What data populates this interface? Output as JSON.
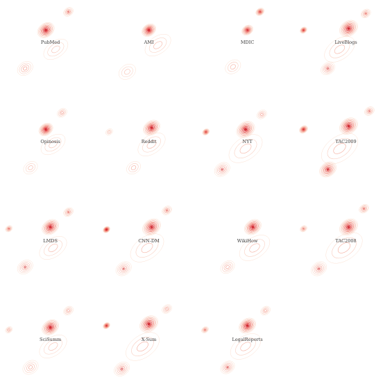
{
  "chart_data": {
    "type": "contour",
    "palette": {
      "outer": "#f7c3a8",
      "mid": "#ee7360",
      "inner": "#d7202a",
      "peak": "#c81d25",
      "label": "#3a3a3a"
    },
    "levels": 9,
    "panels": [
      {
        "name": "PubMed",
        "clusters": [
          {
            "x": 0.47,
            "y": 0.32,
            "s": 0.12,
            "w": 1.0
          },
          {
            "x": 0.72,
            "y": 0.1,
            "s": 0.07,
            "w": 0.55
          },
          {
            "x": 0.24,
            "y": 0.78,
            "s": 0.11,
            "w": 0.45
          },
          {
            "x": 0.58,
            "y": 0.55,
            "s": 0.16,
            "w": 0.25
          }
        ]
      },
      {
        "name": "AMI",
        "clusters": [
          {
            "x": 0.52,
            "y": 0.32,
            "s": 0.1,
            "w": 1.0
          },
          {
            "x": 0.28,
            "y": 0.82,
            "s": 0.12,
            "w": 0.25
          },
          {
            "x": 0.62,
            "y": 0.5,
            "s": 0.17,
            "w": 0.3
          }
        ]
      },
      {
        "name": "MDIC",
        "clusters": [
          {
            "x": 0.52,
            "y": 0.32,
            "s": 0.08,
            "w": 0.9
          },
          {
            "x": 0.66,
            "y": 0.1,
            "s": 0.06,
            "w": 0.75
          },
          {
            "x": 0.36,
            "y": 0.76,
            "s": 0.11,
            "w": 0.35
          }
        ]
      },
      {
        "name": "LiveBlogs",
        "clusters": [
          {
            "x": 0.55,
            "y": 0.3,
            "s": 0.13,
            "w": 1.0
          },
          {
            "x": 0.05,
            "y": 0.32,
            "s": 0.05,
            "w": 0.8
          },
          {
            "x": 0.74,
            "y": 0.12,
            "s": 0.07,
            "w": 0.5
          },
          {
            "x": 0.32,
            "y": 0.78,
            "s": 0.1,
            "w": 0.6
          },
          {
            "x": 0.45,
            "y": 0.55,
            "s": 0.2,
            "w": 0.3
          }
        ]
      },
      {
        "name": "Opinosis",
        "clusters": [
          {
            "x": 0.47,
            "y": 0.32,
            "s": 0.1,
            "w": 1.0
          },
          {
            "x": 0.65,
            "y": 0.12,
            "s": 0.07,
            "w": 0.45
          },
          {
            "x": 0.3,
            "y": 0.78,
            "s": 0.1,
            "w": 0.3
          },
          {
            "x": 0.55,
            "y": 0.5,
            "s": 0.16,
            "w": 0.25
          }
        ]
      },
      {
        "name": "Reddit",
        "clusters": [
          {
            "x": 0.55,
            "y": 0.3,
            "s": 0.12,
            "w": 1.0
          },
          {
            "x": 0.08,
            "y": 0.35,
            "s": 0.05,
            "w": 0.3
          },
          {
            "x": 0.35,
            "y": 0.78,
            "s": 0.1,
            "w": 0.35
          },
          {
            "x": 0.55,
            "y": 0.5,
            "s": 0.18,
            "w": 0.3
          }
        ]
      },
      {
        "name": "NYT",
        "clusters": [
          {
            "x": 0.5,
            "y": 0.32,
            "s": 0.13,
            "w": 1.0
          },
          {
            "x": 0.06,
            "y": 0.35,
            "s": 0.05,
            "w": 0.75
          },
          {
            "x": 0.68,
            "y": 0.14,
            "s": 0.07,
            "w": 0.45
          },
          {
            "x": 0.24,
            "y": 0.8,
            "s": 0.11,
            "w": 0.6
          },
          {
            "x": 0.5,
            "y": 0.55,
            "s": 0.22,
            "w": 0.3
          }
        ]
      },
      {
        "name": "TAC2009",
        "clusters": [
          {
            "x": 0.55,
            "y": 0.28,
            "s": 0.13,
            "w": 1.0
          },
          {
            "x": 0.05,
            "y": 0.32,
            "s": 0.06,
            "w": 0.85
          },
          {
            "x": 0.78,
            "y": 0.1,
            "s": 0.07,
            "w": 0.5
          },
          {
            "x": 0.32,
            "y": 0.8,
            "s": 0.12,
            "w": 0.85
          },
          {
            "x": 0.45,
            "y": 0.55,
            "s": 0.24,
            "w": 0.35
          }
        ]
      },
      {
        "name": "LMDS",
        "clusters": [
          {
            "x": 0.52,
            "y": 0.3,
            "s": 0.12,
            "w": 1.0
          },
          {
            "x": 0.06,
            "y": 0.32,
            "s": 0.05,
            "w": 0.6
          },
          {
            "x": 0.72,
            "y": 0.12,
            "s": 0.07,
            "w": 0.5
          },
          {
            "x": 0.24,
            "y": 0.78,
            "s": 0.11,
            "w": 0.55
          },
          {
            "x": 0.55,
            "y": 0.55,
            "s": 0.18,
            "w": 0.3
          }
        ]
      },
      {
        "name": "CNN-DM",
        "clusters": [
          {
            "x": 0.55,
            "y": 0.3,
            "s": 0.13,
            "w": 1.0
          },
          {
            "x": 0.05,
            "y": 0.33,
            "s": 0.05,
            "w": 0.95
          },
          {
            "x": 0.72,
            "y": 0.1,
            "s": 0.07,
            "w": 0.5
          },
          {
            "x": 0.24,
            "y": 0.8,
            "s": 0.11,
            "w": 0.55
          },
          {
            "x": 0.5,
            "y": 0.55,
            "s": 0.22,
            "w": 0.3
          }
        ]
      },
      {
        "name": "WikiHow",
        "clusters": [
          {
            "x": 0.58,
            "y": 0.3,
            "s": 0.12,
            "w": 1.0
          },
          {
            "x": 0.3,
            "y": 0.78,
            "s": 0.1,
            "w": 0.45
          },
          {
            "x": 0.6,
            "y": 0.55,
            "s": 0.2,
            "w": 0.3
          }
        ]
      },
      {
        "name": "TAC2008",
        "clusters": [
          {
            "x": 0.55,
            "y": 0.3,
            "s": 0.13,
            "w": 1.0
          },
          {
            "x": 0.05,
            "y": 0.32,
            "s": 0.05,
            "w": 0.5
          },
          {
            "x": 0.72,
            "y": 0.08,
            "s": 0.07,
            "w": 0.55
          },
          {
            "x": 0.22,
            "y": 0.8,
            "s": 0.11,
            "w": 0.6
          },
          {
            "x": 0.5,
            "y": 0.55,
            "s": 0.24,
            "w": 0.35
          }
        ]
      },
      {
        "name": "SciSumm",
        "clusters": [
          {
            "x": 0.52,
            "y": 0.32,
            "s": 0.12,
            "w": 1.0
          },
          {
            "x": 0.06,
            "y": 0.35,
            "s": 0.05,
            "w": 0.4
          },
          {
            "x": 0.72,
            "y": 0.12,
            "s": 0.07,
            "w": 0.45
          },
          {
            "x": 0.3,
            "y": 0.8,
            "s": 0.11,
            "w": 0.4
          },
          {
            "x": 0.55,
            "y": 0.55,
            "s": 0.18,
            "w": 0.25
          }
        ]
      },
      {
        "name": "X-Sum",
        "clusters": [
          {
            "x": 0.52,
            "y": 0.28,
            "s": 0.13,
            "w": 1.0
          },
          {
            "x": 0.05,
            "y": 0.3,
            "s": 0.05,
            "w": 0.85
          },
          {
            "x": 0.72,
            "y": 0.1,
            "s": 0.07,
            "w": 0.45
          },
          {
            "x": 0.22,
            "y": 0.82,
            "s": 0.11,
            "w": 0.6
          },
          {
            "x": 0.45,
            "y": 0.55,
            "s": 0.22,
            "w": 0.35
          }
        ]
      },
      {
        "name": "LegalReports",
        "clusters": [
          {
            "x": 0.52,
            "y": 0.3,
            "s": 0.12,
            "w": 1.0
          },
          {
            "x": 0.05,
            "y": 0.35,
            "s": 0.05,
            "w": 0.55
          },
          {
            "x": 0.72,
            "y": 0.12,
            "s": 0.07,
            "w": 0.45
          },
          {
            "x": 0.3,
            "y": 0.8,
            "s": 0.1,
            "w": 0.6
          },
          {
            "x": 0.5,
            "y": 0.55,
            "s": 0.2,
            "w": 0.3
          }
        ]
      }
    ]
  }
}
